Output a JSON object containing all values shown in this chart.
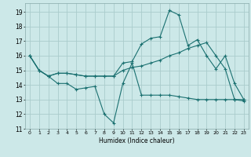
{
  "xlabel": "Humidex (Indice chaleur)",
  "bg_color": "#cce8e8",
  "grid_color": "#aacccc",
  "line_color": "#1a7070",
  "xlim": [
    -0.5,
    23.5
  ],
  "ylim": [
    11,
    19.6
  ],
  "yticks": [
    11,
    12,
    13,
    14,
    15,
    16,
    17,
    18,
    19
  ],
  "xticks": [
    0,
    1,
    2,
    3,
    4,
    5,
    6,
    7,
    8,
    9,
    10,
    11,
    12,
    13,
    14,
    15,
    16,
    17,
    18,
    19,
    20,
    21,
    22,
    23
  ],
  "line1_x": [
    0,
    1,
    2,
    3,
    4,
    5,
    6,
    7,
    8,
    9,
    10,
    11,
    12,
    13,
    14,
    15,
    16,
    17,
    18,
    19,
    20,
    21,
    22,
    23
  ],
  "line1_y": [
    16,
    15,
    14.6,
    14.1,
    14.1,
    13.7,
    13.8,
    13.9,
    12.0,
    11.4,
    14.1,
    15.5,
    13.3,
    13.3,
    13.3,
    13.3,
    13.2,
    13.1,
    13.0,
    13.0,
    13.0,
    13.0,
    13.0,
    13.0
  ],
  "line2_x": [
    0,
    1,
    2,
    3,
    4,
    5,
    6,
    7,
    8,
    9,
    10,
    11,
    12,
    13,
    14,
    15,
    16,
    17,
    18,
    19,
    20,
    21,
    22,
    23
  ],
  "line2_y": [
    16,
    15,
    14.6,
    14.8,
    14.8,
    14.7,
    14.6,
    14.6,
    14.6,
    14.6,
    15.5,
    15.6,
    16.8,
    17.2,
    17.3,
    19.1,
    18.8,
    16.7,
    17.1,
    16.0,
    15.1,
    16.0,
    14.1,
    13.0
  ],
  "line3_x": [
    0,
    1,
    2,
    3,
    4,
    5,
    6,
    7,
    8,
    9,
    10,
    11,
    12,
    13,
    14,
    15,
    16,
    17,
    18,
    19,
    20,
    21,
    22,
    23
  ],
  "line3_y": [
    16,
    15,
    14.6,
    14.8,
    14.8,
    14.7,
    14.6,
    14.6,
    14.6,
    14.6,
    15.0,
    15.2,
    15.3,
    15.5,
    15.7,
    16.0,
    16.2,
    16.5,
    16.7,
    16.9,
    16.0,
    15.1,
    13.0,
    12.9
  ]
}
